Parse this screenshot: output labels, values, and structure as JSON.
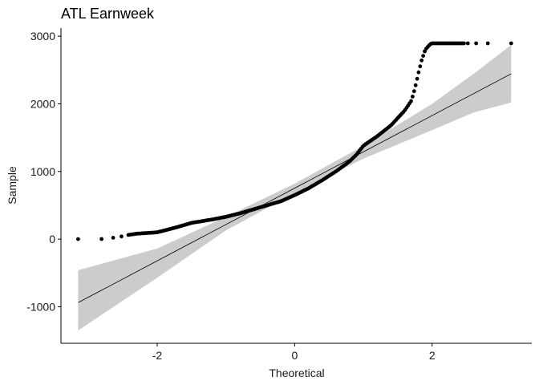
{
  "chart_data": {
    "type": "scatter",
    "title": "ATL Earnweek",
    "xlabel": "Theoretical",
    "ylabel": "Sample",
    "xlim": [
      -3.4,
      3.45
    ],
    "ylim": [
      -1540,
      3120
    ],
    "x_ticks": [
      -2,
      0,
      2
    ],
    "x_tick_labels": [
      "-2",
      "0",
      "2"
    ],
    "y_ticks": [
      -1000,
      0,
      1000,
      2000,
      3000
    ],
    "y_tick_labels": [
      "-1000",
      "0",
      "1000",
      "2000",
      "3000"
    ],
    "grid": false,
    "legend": "none",
    "reference_line": {
      "intercept": 753,
      "slope": 537,
      "x_range": [
        -3.15,
        3.15
      ],
      "band": [
        {
          "x": -3.15,
          "lower": -1350,
          "upper": -460
        },
        {
          "x": -2.0,
          "lower": -570,
          "upper": -140
        },
        {
          "x": -1.0,
          "lower": 130,
          "upper": 330
        },
        {
          "x": 0.0,
          "lower": 680,
          "upper": 820
        },
        {
          "x": 1.0,
          "lower": 1190,
          "upper": 1380
        },
        {
          "x": 2.0,
          "lower": 1610,
          "upper": 2000
        },
        {
          "x": 2.6,
          "lower": 1870,
          "upper": 2440
        },
        {
          "x": 3.15,
          "lower": 2020,
          "upper": 2870
        }
      ]
    },
    "points_curve": [
      {
        "x": -3.15,
        "y": 0
      },
      {
        "x": -2.8,
        "y": 5
      },
      {
        "x": -2.3,
        "y": 80
      },
      {
        "x": -2.0,
        "y": 100
      },
      {
        "x": -1.7,
        "y": 180
      },
      {
        "x": -1.5,
        "y": 240
      },
      {
        "x": -1.2,
        "y": 290
      },
      {
        "x": -1.0,
        "y": 330
      },
      {
        "x": -0.8,
        "y": 380
      },
      {
        "x": -0.6,
        "y": 440
      },
      {
        "x": -0.4,
        "y": 500
      },
      {
        "x": -0.2,
        "y": 560
      },
      {
        "x": 0.0,
        "y": 650
      },
      {
        "x": 0.2,
        "y": 750
      },
      {
        "x": 0.4,
        "y": 870
      },
      {
        "x": 0.6,
        "y": 1000
      },
      {
        "x": 0.8,
        "y": 1150
      },
      {
        "x": 0.9,
        "y": 1250
      },
      {
        "x": 1.0,
        "y": 1380
      },
      {
        "x": 1.2,
        "y": 1520
      },
      {
        "x": 1.4,
        "y": 1680
      },
      {
        "x": 1.6,
        "y": 1900
      },
      {
        "x": 1.7,
        "y": 2050
      },
      {
        "x": 1.75,
        "y": 2230
      },
      {
        "x": 1.8,
        "y": 2450
      },
      {
        "x": 1.85,
        "y": 2650
      },
      {
        "x": 1.9,
        "y": 2800
      },
      {
        "x": 1.97,
        "y": 2880
      },
      {
        "x": 2.0,
        "y": 2895
      },
      {
        "x": 3.15,
        "y": 2895
      }
    ],
    "isolated_points": [
      {
        "x": -3.15,
        "y": 0
      },
      {
        "x": -2.81,
        "y": 2
      },
      {
        "x": -2.64,
        "y": 20
      },
      {
        "x": -2.52,
        "y": 40
      },
      {
        "x": 2.52,
        "y": 2895
      },
      {
        "x": 2.64,
        "y": 2895
      },
      {
        "x": 2.81,
        "y": 2895
      },
      {
        "x": 3.15,
        "y": 2895
      }
    ],
    "colors": {
      "points": "#000000",
      "band": "#cccccc",
      "line": "#000000"
    }
  }
}
